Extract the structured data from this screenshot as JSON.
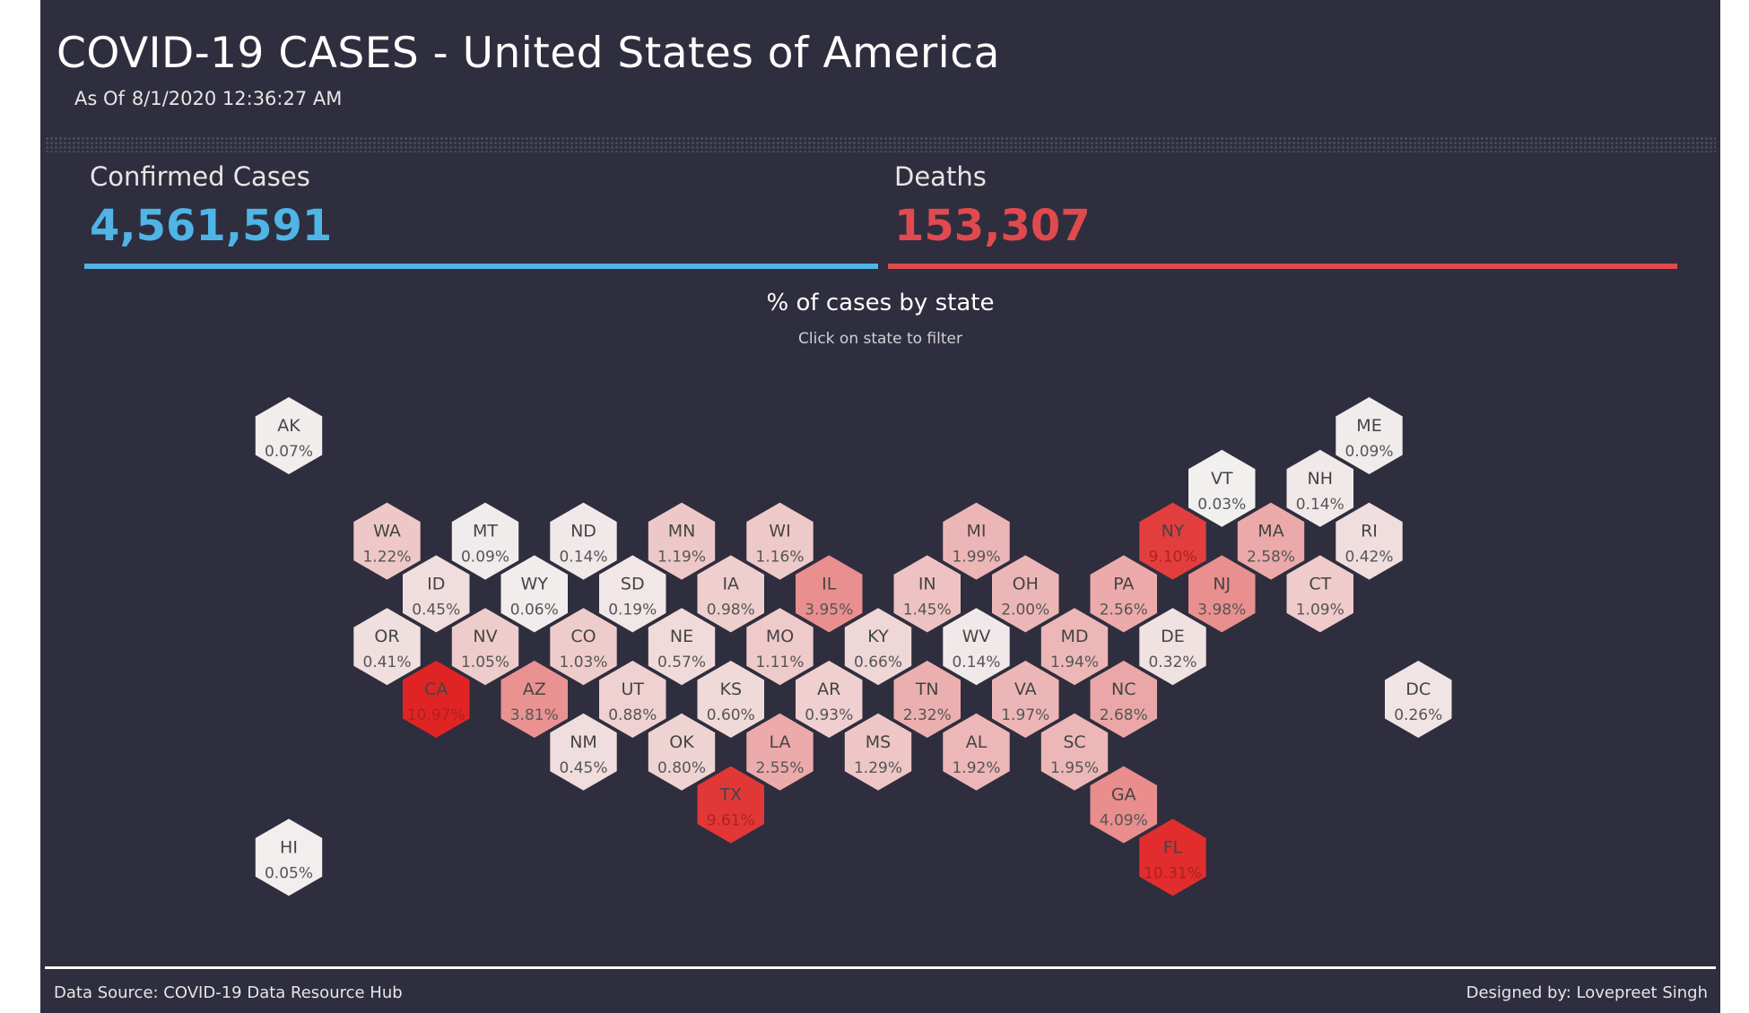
{
  "header": {
    "title": "COVID-19 CASES - United States of America",
    "asof_label": "As Of",
    "asof_value": "8/1/2020 12:36:27 AM"
  },
  "kpis": {
    "confirmed_label": "Confirmed Cases",
    "confirmed_value": "4,561,591",
    "deaths_label": "Deaths",
    "deaths_value": "153,307",
    "confirmed_color": "#4fb4e6",
    "deaths_color": "#e04a4f"
  },
  "map": {
    "title": "% of cases by state",
    "subtitle": "Click on state to filter"
  },
  "footer": {
    "source": "Data Source: COVID-19 Data Resource Hub",
    "designer": "Designed by: Lovepreet Singh"
  },
  "chart_data": {
    "type": "hex-tile-map",
    "title": "% of cases by state",
    "value_unit": "% of cases",
    "color_scale": {
      "low": "#f2f2f2",
      "high": "#e02424"
    },
    "states": [
      {
        "code": "AK",
        "pct": 0.07,
        "label": "0.07%",
        "row": 0,
        "col": 0
      },
      {
        "code": "ME",
        "pct": 0.09,
        "label": "0.09%",
        "row": 0,
        "col": 11
      },
      {
        "code": "VT",
        "pct": 0.03,
        "label": "0.03%",
        "row": 1,
        "col": 9
      },
      {
        "code": "NH",
        "pct": 0.14,
        "label": "0.14%",
        "row": 1,
        "col": 10
      },
      {
        "code": "WA",
        "pct": 1.22,
        "label": "1.22%",
        "row": 2,
        "col": 1
      },
      {
        "code": "MT",
        "pct": 0.09,
        "label": "0.09%",
        "row": 2,
        "col": 2
      },
      {
        "code": "ND",
        "pct": 0.14,
        "label": "0.14%",
        "row": 2,
        "col": 3
      },
      {
        "code": "MN",
        "pct": 1.19,
        "label": "1.19%",
        "row": 2,
        "col": 4
      },
      {
        "code": "WI",
        "pct": 1.16,
        "label": "1.16%",
        "row": 2,
        "col": 5
      },
      {
        "code": "MI",
        "pct": 1.99,
        "label": "1.99%",
        "row": 2,
        "col": 7
      },
      {
        "code": "NY",
        "pct": 9.1,
        "label": "9.10%",
        "row": 2,
        "col": 9
      },
      {
        "code": "MA",
        "pct": 2.58,
        "label": "2.58%",
        "row": 2,
        "col": 10
      },
      {
        "code": "RI",
        "pct": 0.42,
        "label": "0.42%",
        "row": 2,
        "col": 11
      },
      {
        "code": "ID",
        "pct": 0.45,
        "label": "0.45%",
        "row": 3,
        "col": 1
      },
      {
        "code": "WY",
        "pct": 0.06,
        "label": "0.06%",
        "row": 3,
        "col": 2
      },
      {
        "code": "SD",
        "pct": 0.19,
        "label": "0.19%",
        "row": 3,
        "col": 3
      },
      {
        "code": "IA",
        "pct": 0.98,
        "label": "0.98%",
        "row": 3,
        "col": 4
      },
      {
        "code": "IL",
        "pct": 3.95,
        "label": "3.95%",
        "row": 3,
        "col": 5
      },
      {
        "code": "IN",
        "pct": 1.45,
        "label": "1.45%",
        "row": 3,
        "col": 6
      },
      {
        "code": "OH",
        "pct": 2.0,
        "label": "2.00%",
        "row": 3,
        "col": 7
      },
      {
        "code": "PA",
        "pct": 2.56,
        "label": "2.56%",
        "row": 3,
        "col": 8
      },
      {
        "code": "NJ",
        "pct": 3.98,
        "label": "3.98%",
        "row": 3,
        "col": 9
      },
      {
        "code": "CT",
        "pct": 1.09,
        "label": "1.09%",
        "row": 3,
        "col": 10
      },
      {
        "code": "OR",
        "pct": 0.41,
        "label": "0.41%",
        "row": 4,
        "col": 1
      },
      {
        "code": "NV",
        "pct": 1.05,
        "label": "1.05%",
        "row": 4,
        "col": 2
      },
      {
        "code": "CO",
        "pct": 1.03,
        "label": "1.03%",
        "row": 4,
        "col": 3
      },
      {
        "code": "NE",
        "pct": 0.57,
        "label": "0.57%",
        "row": 4,
        "col": 4
      },
      {
        "code": "MO",
        "pct": 1.11,
        "label": "1.11%",
        "row": 4,
        "col": 5
      },
      {
        "code": "KY",
        "pct": 0.66,
        "label": "0.66%",
        "row": 4,
        "col": 6
      },
      {
        "code": "WV",
        "pct": 0.14,
        "label": "0.14%",
        "row": 4,
        "col": 7
      },
      {
        "code": "MD",
        "pct": 1.94,
        "label": "1.94%",
        "row": 4,
        "col": 8
      },
      {
        "code": "DE",
        "pct": 0.32,
        "label": "0.32%",
        "row": 4,
        "col": 9
      },
      {
        "code": "CA",
        "pct": 10.97,
        "label": "10.97%",
        "row": 5,
        "col": 1
      },
      {
        "code": "AZ",
        "pct": 3.81,
        "label": "3.81%",
        "row": 5,
        "col": 2
      },
      {
        "code": "UT",
        "pct": 0.88,
        "label": "0.88%",
        "row": 5,
        "col": 3
      },
      {
        "code": "KS",
        "pct": 0.6,
        "label": "0.60%",
        "row": 5,
        "col": 4
      },
      {
        "code": "AR",
        "pct": 0.93,
        "label": "0.93%",
        "row": 5,
        "col": 5
      },
      {
        "code": "TN",
        "pct": 2.32,
        "label": "2.32%",
        "row": 5,
        "col": 6
      },
      {
        "code": "VA",
        "pct": 1.97,
        "label": "1.97%",
        "row": 5,
        "col": 7
      },
      {
        "code": "NC",
        "pct": 2.68,
        "label": "2.68%",
        "row": 5,
        "col": 8
      },
      {
        "code": "DC",
        "pct": 0.26,
        "label": "0.26%",
        "row": 5,
        "col": 11
      },
      {
        "code": "NM",
        "pct": 0.45,
        "label": "0.45%",
        "row": 6,
        "col": 3
      },
      {
        "code": "OK",
        "pct": 0.8,
        "label": "0.80%",
        "row": 6,
        "col": 4
      },
      {
        "code": "LA",
        "pct": 2.55,
        "label": "2.55%",
        "row": 6,
        "col": 5
      },
      {
        "code": "MS",
        "pct": 1.29,
        "label": "1.29%",
        "row": 6,
        "col": 6
      },
      {
        "code": "AL",
        "pct": 1.92,
        "label": "1.92%",
        "row": 6,
        "col": 7
      },
      {
        "code": "SC",
        "pct": 1.95,
        "label": "1.95%",
        "row": 6,
        "col": 8
      },
      {
        "code": "TX",
        "pct": 9.61,
        "label": "9.61%",
        "row": 7,
        "col": 4
      },
      {
        "code": "GA",
        "pct": 4.09,
        "label": "4.09%",
        "row": 7,
        "col": 8
      },
      {
        "code": "HI",
        "pct": 0.05,
        "label": "0.05%",
        "row": 8,
        "col": 0
      },
      {
        "code": "FL",
        "pct": 10.31,
        "label": "10.31%",
        "row": 8,
        "col": 9
      }
    ]
  }
}
